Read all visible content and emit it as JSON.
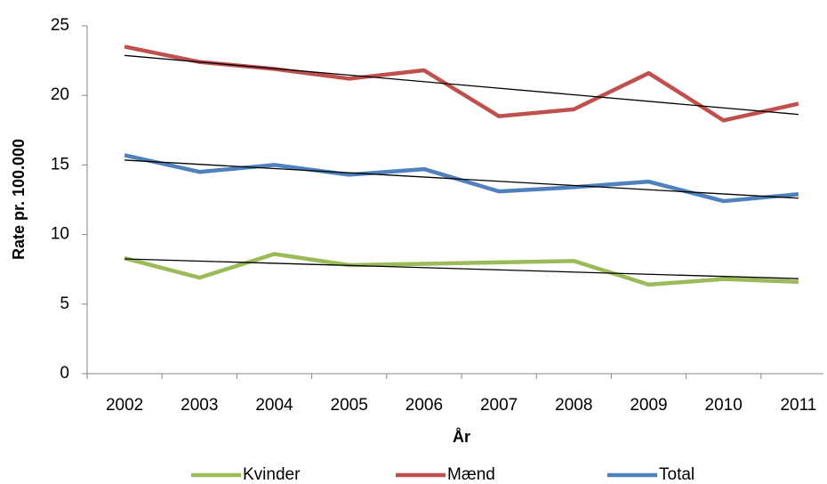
{
  "chart_data": {
    "type": "line",
    "x_label": "År",
    "y_label": "Rate pr. 100.000",
    "categories": [
      "2002",
      "2003",
      "2004",
      "2005",
      "2006",
      "2007",
      "2008",
      "2009",
      "2010",
      "2011"
    ],
    "series": [
      {
        "name": "Kvinder",
        "color": "#9bbb59",
        "values": [
          8.3,
          6.9,
          8.6,
          7.8,
          7.9,
          8.0,
          8.1,
          6.4,
          6.8,
          6.6
        ]
      },
      {
        "name": "Mænd",
        "color": "#c0504d",
        "values": [
          23.5,
          22.4,
          21.9,
          21.2,
          21.8,
          18.5,
          19.0,
          21.6,
          18.2,
          19.4
        ]
      },
      {
        "name": "Total",
        "color": "#4f81bd",
        "values": [
          15.7,
          14.5,
          15.0,
          14.3,
          14.7,
          13.1,
          13.4,
          13.8,
          12.4,
          12.9
        ]
      }
    ],
    "ylim": [
      0,
      25
    ],
    "yticks": [
      0,
      5,
      10,
      15,
      20,
      25
    ],
    "grid": false,
    "trendline": true,
    "legend": "bottom"
  }
}
